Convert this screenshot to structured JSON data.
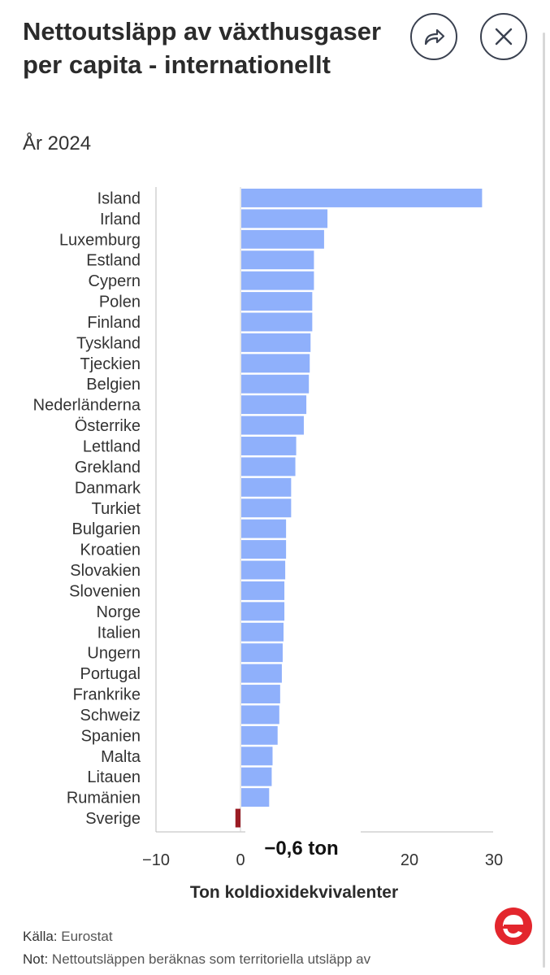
{
  "header": {
    "title": "Nettoutsläpp av växthusgaser per capita - internationellt",
    "subtitle": "År 2024",
    "share_icon": "share-icon",
    "close_icon": "close-icon"
  },
  "chart_data": {
    "type": "bar",
    "orientation": "horizontal",
    "title": "Nettoutsläpp av växthusgaser per capita - internationellt",
    "subtitle": "År 2024",
    "xlabel": "Ton koldioxidekvivalenter",
    "ylabel": "",
    "xlim": [
      -10,
      30
    ],
    "xticks": [
      -10,
      0,
      10,
      20,
      30
    ],
    "xtick_labels": [
      "−10",
      "0",
      "10",
      "20",
      "30"
    ],
    "categories": [
      "Island",
      "Irland",
      "Luxemburg",
      "Estland",
      "Cypern",
      "Polen",
      "Finland",
      "Tyskland",
      "Tjeckien",
      "Belgien",
      "Nederländerna",
      "Österrike",
      "Lettland",
      "Grekland",
      "Danmark",
      "Turkiet",
      "Bulgarien",
      "Kroatien",
      "Slovakien",
      "Slovenien",
      "Norge",
      "Italien",
      "Ungern",
      "Portugal",
      "Frankrike",
      "Schweiz",
      "Spanien",
      "Malta",
      "Litauen",
      "Rumänien",
      "Sverige"
    ],
    "values": [
      28.5,
      10.2,
      9.8,
      8.6,
      8.6,
      8.4,
      8.4,
      8.2,
      8.1,
      8.0,
      7.7,
      7.4,
      6.5,
      6.4,
      5.9,
      5.9,
      5.3,
      5.3,
      5.2,
      5.1,
      5.1,
      5.0,
      4.9,
      4.8,
      4.6,
      4.5,
      4.3,
      3.7,
      3.6,
      3.3,
      -0.6
    ],
    "colors": {
      "positive": "#8fb0fb",
      "negative": "#9b1c24"
    },
    "highlight": {
      "category": "Sverige",
      "label": "−0,6 ton"
    },
    "grid": false
  },
  "footer": {
    "source_label": "Källa:",
    "source_value": "Eurostat",
    "note_label": "Not:",
    "note_value": "Nettoutsläppen beräknas som territoriella utsläpp av"
  },
  "logo": {
    "icon": "expressen-e-logo-icon",
    "color": "#e3262d"
  }
}
